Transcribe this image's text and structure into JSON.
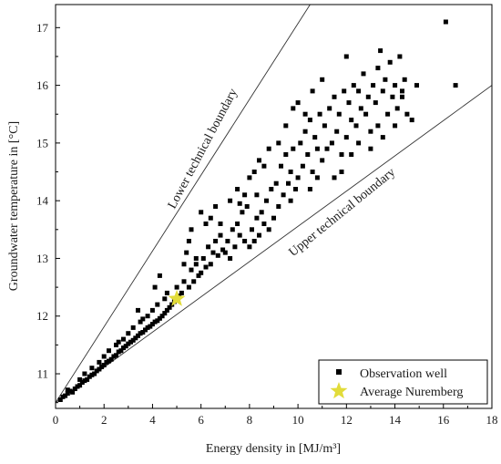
{
  "chart_data": {
    "type": "scatter",
    "xlabel": "Energy density in [MJ/m³]",
    "ylabel": "Groundwater temperature in [°C]",
    "xlim": [
      0,
      18
    ],
    "ylim": [
      10.4,
      17.4
    ],
    "xticks": [
      "0",
      "2",
      "4",
      "6",
      "8",
      "10",
      "12",
      "14",
      "16",
      "18"
    ],
    "yticks": [
      "11",
      "12",
      "13",
      "14",
      "15",
      "16",
      "17"
    ],
    "grid": false,
    "legend_position": "bottom-right",
    "boundaries": [
      {
        "label": "Lower technical boundary",
        "x": [
          0,
          10.5
        ],
        "y": [
          10.5,
          17.4
        ]
      },
      {
        "label": "Upper technical boundary",
        "x": [
          0,
          18
        ],
        "y": [
          10.5,
          16.0
        ]
      }
    ],
    "series": [
      {
        "name": "Observation well",
        "marker": "square",
        "color": "#000000",
        "points": [
          [
            0.2,
            10.55
          ],
          [
            0.3,
            10.6
          ],
          [
            0.4,
            10.62
          ],
          [
            0.5,
            10.66
          ],
          [
            0.6,
            10.7
          ],
          [
            0.7,
            10.68
          ],
          [
            0.8,
            10.74
          ],
          [
            0.9,
            10.78
          ],
          [
            1.0,
            10.8
          ],
          [
            1.1,
            10.85
          ],
          [
            1.2,
            10.88
          ],
          [
            1.3,
            10.9
          ],
          [
            1.4,
            10.95
          ],
          [
            1.5,
            10.98
          ],
          [
            1.6,
            11.0
          ],
          [
            1.7,
            11.05
          ],
          [
            1.8,
            11.08
          ],
          [
            1.9,
            11.12
          ],
          [
            2.0,
            11.15
          ],
          [
            2.1,
            11.2
          ],
          [
            2.2,
            11.22
          ],
          [
            2.3,
            11.25
          ],
          [
            2.4,
            11.3
          ],
          [
            2.5,
            11.32
          ],
          [
            2.6,
            11.38
          ],
          [
            2.7,
            11.4
          ],
          [
            2.8,
            11.45
          ],
          [
            2.9,
            11.48
          ],
          [
            3.0,
            11.52
          ],
          [
            3.1,
            11.55
          ],
          [
            3.2,
            11.58
          ],
          [
            3.3,
            11.62
          ],
          [
            3.4,
            11.66
          ],
          [
            3.5,
            11.7
          ],
          [
            3.6,
            11.72
          ],
          [
            3.7,
            11.76
          ],
          [
            3.8,
            11.8
          ],
          [
            3.9,
            11.82
          ],
          [
            4.0,
            11.86
          ],
          [
            4.1,
            11.9
          ],
          [
            4.2,
            11.92
          ],
          [
            4.3,
            11.96
          ],
          [
            4.4,
            12.0
          ],
          [
            4.5,
            12.05
          ],
          [
            4.6,
            12.1
          ],
          [
            4.7,
            12.15
          ],
          [
            4.8,
            12.2
          ],
          [
            4.9,
            12.25
          ],
          [
            5.0,
            12.3
          ],
          [
            5.1,
            12.35
          ],
          [
            0.5,
            10.72
          ],
          [
            1.0,
            10.9
          ],
          [
            1.5,
            11.1
          ],
          [
            2.0,
            11.3
          ],
          [
            2.5,
            11.5
          ],
          [
            3.0,
            11.7
          ],
          [
            3.5,
            11.9
          ],
          [
            4.0,
            12.1
          ],
          [
            4.5,
            12.3
          ],
          [
            1.2,
            11.0
          ],
          [
            1.8,
            11.2
          ],
          [
            2.2,
            11.4
          ],
          [
            2.8,
            11.6
          ],
          [
            3.2,
            11.8
          ],
          [
            3.8,
            12.0
          ],
          [
            4.2,
            12.2
          ],
          [
            2.6,
            11.55
          ],
          [
            3.6,
            11.95
          ],
          [
            4.6,
            12.4
          ],
          [
            3.4,
            12.1
          ],
          [
            4.1,
            12.5
          ],
          [
            4.3,
            12.7
          ],
          [
            5.0,
            12.5
          ],
          [
            5.2,
            12.4
          ],
          [
            5.3,
            12.6
          ],
          [
            5.5,
            12.5
          ],
          [
            5.6,
            12.8
          ],
          [
            5.7,
            12.6
          ],
          [
            5.8,
            12.9
          ],
          [
            5.9,
            12.7
          ],
          [
            6.0,
            12.75
          ],
          [
            6.1,
            13.0
          ],
          [
            6.2,
            12.85
          ],
          [
            6.3,
            13.2
          ],
          [
            6.4,
            12.9
          ],
          [
            6.5,
            13.1
          ],
          [
            6.6,
            13.3
          ],
          [
            6.7,
            13.05
          ],
          [
            6.8,
            13.4
          ],
          [
            6.9,
            13.15
          ],
          [
            5.4,
            13.1
          ],
          [
            5.6,
            13.5
          ],
          [
            5.8,
            13.0
          ],
          [
            6.0,
            13.8
          ],
          [
            6.2,
            13.6
          ],
          [
            6.4,
            13.7
          ],
          [
            6.6,
            13.9
          ],
          [
            5.3,
            12.9
          ],
          [
            5.5,
            13.3
          ],
          [
            6.8,
            13.6
          ],
          [
            7.0,
            13.1
          ],
          [
            7.1,
            13.3
          ],
          [
            7.2,
            13.0
          ],
          [
            7.3,
            13.5
          ],
          [
            7.4,
            13.2
          ],
          [
            7.5,
            13.6
          ],
          [
            7.6,
            13.4
          ],
          [
            7.7,
            13.8
          ],
          [
            7.8,
            13.3
          ],
          [
            7.9,
            13.9
          ],
          [
            8.0,
            13.2
          ],
          [
            8.1,
            13.5
          ],
          [
            8.2,
            13.3
          ],
          [
            8.3,
            13.7
          ],
          [
            8.4,
            13.4
          ],
          [
            8.5,
            13.8
          ],
          [
            8.6,
            13.6
          ],
          [
            8.7,
            14.0
          ],
          [
            8.8,
            13.5
          ],
          [
            8.9,
            14.2
          ],
          [
            7.2,
            14.0
          ],
          [
            7.5,
            14.2
          ],
          [
            7.8,
            14.1
          ],
          [
            8.0,
            14.4
          ],
          [
            8.2,
            14.5
          ],
          [
            8.4,
            14.7
          ],
          [
            8.6,
            14.6
          ],
          [
            8.8,
            14.9
          ],
          [
            7.6,
            13.95
          ],
          [
            8.3,
            14.1
          ],
          [
            9.0,
            13.7
          ],
          [
            9.1,
            14.3
          ],
          [
            9.2,
            13.9
          ],
          [
            9.3,
            14.6
          ],
          [
            9.4,
            14.1
          ],
          [
            9.5,
            14.8
          ],
          [
            9.6,
            14.3
          ],
          [
            9.7,
            14.5
          ],
          [
            9.8,
            14.9
          ],
          [
            9.9,
            14.2
          ],
          [
            10.0,
            14.4
          ],
          [
            10.1,
            15.0
          ],
          [
            10.2,
            14.6
          ],
          [
            10.3,
            15.2
          ],
          [
            10.4,
            14.8
          ],
          [
            10.5,
            15.4
          ],
          [
            10.6,
            14.5
          ],
          [
            10.7,
            15.1
          ],
          [
            10.8,
            14.9
          ],
          [
            10.9,
            15.5
          ],
          [
            9.2,
            15.0
          ],
          [
            9.5,
            15.3
          ],
          [
            9.8,
            15.6
          ],
          [
            10.0,
            15.7
          ],
          [
            10.3,
            15.5
          ],
          [
            10.6,
            15.9
          ],
          [
            11.0,
            16.1
          ],
          [
            10.5,
            14.2
          ],
          [
            9.7,
            14.0
          ],
          [
            10.8,
            14.4
          ],
          [
            11.0,
            14.7
          ],
          [
            11.1,
            15.3
          ],
          [
            11.2,
            14.9
          ],
          [
            11.3,
            15.6
          ],
          [
            11.4,
            15.0
          ],
          [
            11.5,
            15.8
          ],
          [
            11.6,
            15.2
          ],
          [
            11.7,
            15.5
          ],
          [
            11.8,
            14.8
          ],
          [
            11.9,
            15.9
          ],
          [
            12.0,
            15.1
          ],
          [
            12.1,
            15.7
          ],
          [
            12.2,
            15.4
          ],
          [
            12.3,
            16.0
          ],
          [
            12.4,
            15.3
          ],
          [
            12.5,
            15.9
          ],
          [
            12.6,
            15.6
          ],
          [
            12.7,
            16.2
          ],
          [
            12.8,
            15.5
          ],
          [
            12.9,
            15.8
          ],
          [
            13.0,
            15.2
          ],
          [
            13.1,
            16.0
          ],
          [
            13.2,
            15.7
          ],
          [
            13.3,
            16.3
          ],
          [
            13.4,
            16.6
          ],
          [
            13.5,
            15.9
          ],
          [
            13.6,
            16.1
          ],
          [
            13.7,
            15.5
          ],
          [
            13.8,
            16.4
          ],
          [
            13.9,
            15.8
          ],
          [
            14.0,
            16.0
          ],
          [
            14.1,
            15.6
          ],
          [
            14.2,
            16.5
          ],
          [
            14.3,
            15.9
          ],
          [
            14.4,
            16.1
          ],
          [
            14.5,
            15.5
          ],
          [
            14.7,
            15.4
          ],
          [
            14.9,
            16.0
          ],
          [
            12.0,
            16.5
          ],
          [
            11.8,
            14.5
          ],
          [
            12.5,
            15.0
          ],
          [
            13.0,
            14.9
          ],
          [
            13.5,
            15.1
          ],
          [
            14.0,
            15.3
          ],
          [
            11.5,
            14.4
          ],
          [
            12.2,
            14.8
          ],
          [
            13.3,
            15.3
          ],
          [
            14.3,
            15.8
          ],
          [
            16.1,
            17.1
          ],
          [
            16.5,
            16.0
          ]
        ]
      },
      {
        "name": "Average Nuremberg",
        "marker": "star",
        "color": "#e2dc3a",
        "points": [
          [
            5.0,
            12.3
          ]
        ]
      }
    ]
  }
}
